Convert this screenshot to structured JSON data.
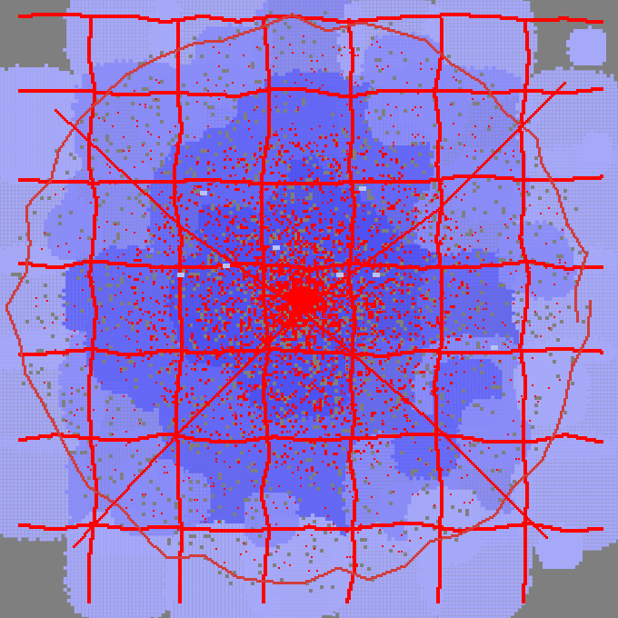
{
  "colors": {
    "background": "#7f7f7f",
    "zone_core": "#4f52f2",
    "zone_mid": "#6468f5",
    "zone_outer": "#8a8cf7",
    "zone_edge": "#a6a8f8",
    "road_major": "#ff0000",
    "road_minor": "#d23c3c",
    "landmark": "#b9c2f5"
  }
}
